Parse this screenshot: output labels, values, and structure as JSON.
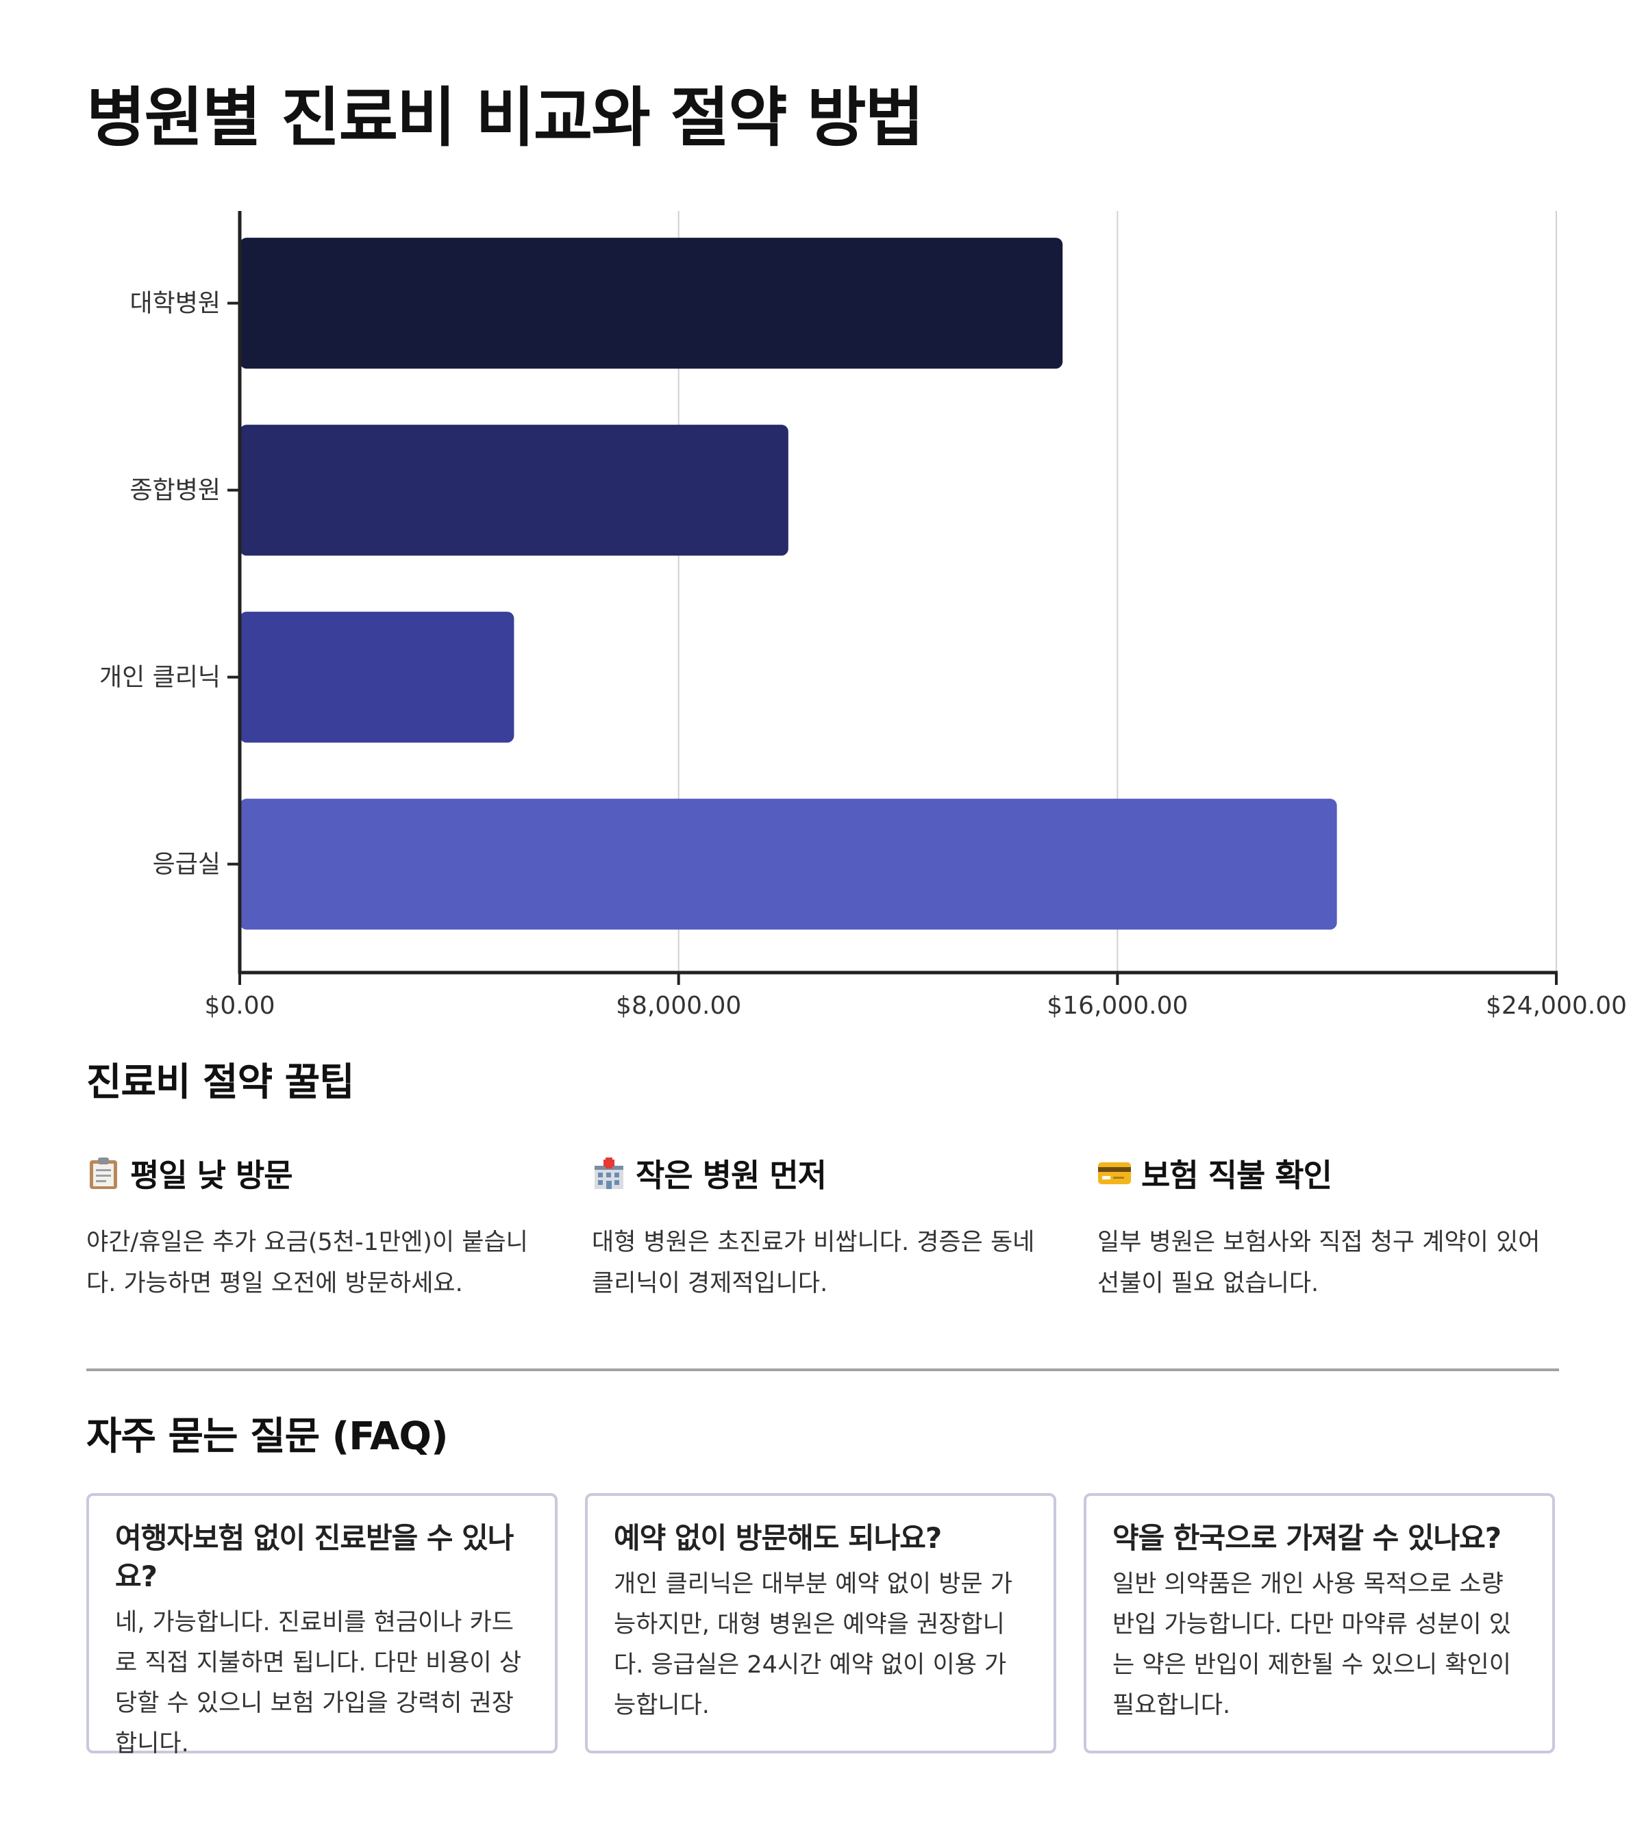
{
  "page": {
    "title": "병원별 진료비 비교와 절약 방법"
  },
  "chart_data": {
    "type": "bar",
    "orientation": "horizontal",
    "categories": [
      "대학병원",
      "종합병원",
      "개인 클리닉",
      "응급실"
    ],
    "values": [
      15000,
      10000,
      5000,
      20000
    ],
    "colors": [
      "#161a3a",
      "#262a68",
      "#3a3f9a",
      "#555dbf"
    ],
    "xlim": [
      0,
      24000
    ],
    "xticks": [
      0,
      8000,
      16000,
      24000
    ],
    "xtick_labels": [
      "$0.00",
      "$8,000.00",
      "$16,000.00",
      "$24,000.00"
    ],
    "grid": "vertical",
    "title": "",
    "xlabel": "",
    "ylabel": ""
  },
  "tips": {
    "title": "진료비 절약 꿀팁",
    "items": [
      {
        "icon": "clipboard-icon",
        "title": "평일 낮 방문",
        "text": "야간/휴일은 추가 요금(5천-1만엔)이 붙습니다. 가능하면 평일 오전에 방문하세요."
      },
      {
        "icon": "hospital-icon",
        "title": "작은 병원 먼저",
        "text": "대형 병원은 초진료가 비쌉니다. 경증은 동네 클리닉이 경제적입니다."
      },
      {
        "icon": "credit-card-icon",
        "title": "보험 직불 확인",
        "text": "일부 병원은 보험사와 직접 청구 계약이 있어 선불이 필요 없습니다."
      }
    ]
  },
  "faq": {
    "title": "자주 묻는 질문 (FAQ)",
    "items": [
      {
        "q": "여행자보험 없이 진료받을 수 있나요?",
        "a": "네, 가능합니다. 진료비를 현금이나 카드로 직접 지불하면 됩니다. 다만 비용이 상당할 수 있으니 보험 가입을 강력히 권장합니다."
      },
      {
        "q": "예약 없이 방문해도 되나요?",
        "a": "개인 클리닉은 대부분 예약 없이 방문 가능하지만, 대형 병원은 예약을 권장합니다. 응급실은 24시간 예약 없이 이용 가능합니다."
      },
      {
        "q": "약을 한국으로 가져갈 수 있나요?",
        "a": "일반 의약품은 개인 사용 목적으로 소량 반입 가능합니다. 다만 마약류 성분이 있는 약은 반입이 제한될 수 있으니 확인이 필요합니다."
      }
    ]
  }
}
